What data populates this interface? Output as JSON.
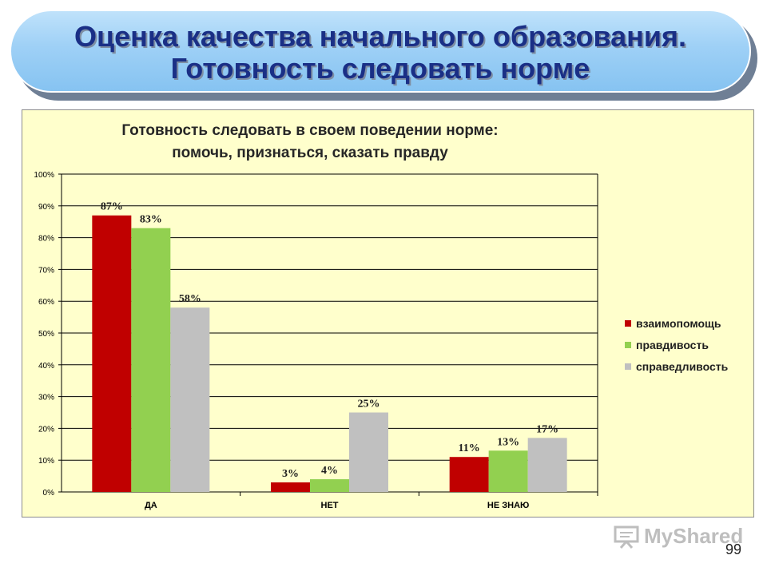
{
  "slide": {
    "title_line1": "Оценка качества начального образования.",
    "title_line2": "Готовность следовать норме",
    "page_number": "99",
    "watermark": "MyShared"
  },
  "chart_data": {
    "type": "bar",
    "title_line1": "Готовность следовать в своем поведении норме:",
    "title_line2": "помочь, признаться, сказать правду",
    "categories": [
      "ДА",
      "НЕТ",
      "НЕ ЗНАЮ"
    ],
    "series": [
      {
        "name": "взаимопомощь",
        "color": "#c00000",
        "values": [
          87,
          3,
          11
        ],
        "labels": [
          "87%",
          "3%",
          "11%"
        ]
      },
      {
        "name": "правдивость",
        "color": "#92d050",
        "values": [
          83,
          4,
          13
        ],
        "labels": [
          "83%",
          "4%",
          "13%"
        ]
      },
      {
        "name": "справедливость",
        "color": "#c0c0c0",
        "values": [
          58,
          25,
          17
        ],
        "labels": [
          "58%",
          "25%",
          "17%"
        ]
      }
    ],
    "ylim": [
      0,
      100
    ],
    "yticks": [
      "0%",
      "10%",
      "20%",
      "30%",
      "40%",
      "50%",
      "60%",
      "70%",
      "80%",
      "90%",
      "100%"
    ],
    "grid": true,
    "legend_position": "right"
  }
}
